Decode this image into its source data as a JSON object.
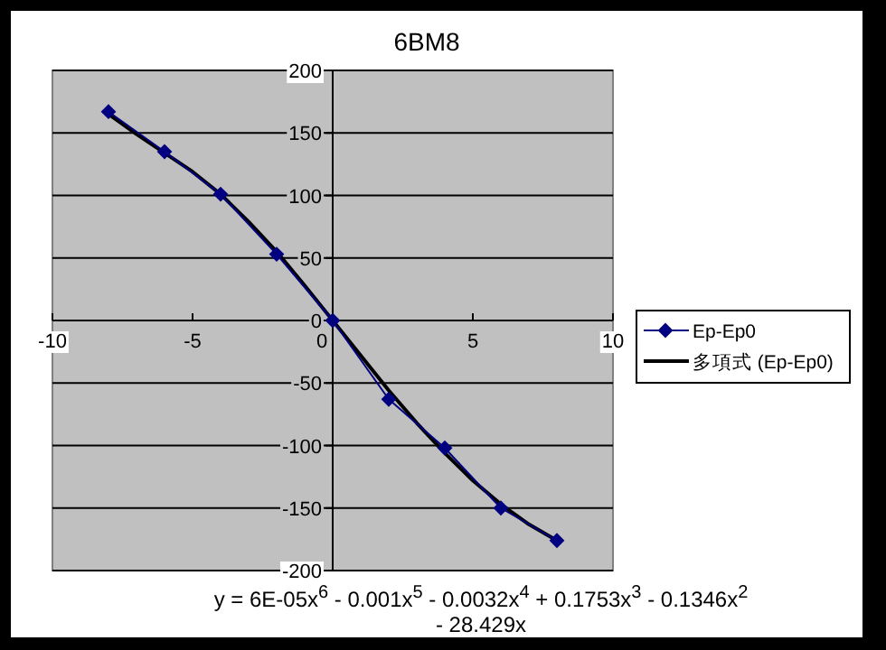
{
  "chart_data": {
    "type": "line",
    "title": "6BM8",
    "x": [
      -8,
      -6,
      -4,
      -2,
      0,
      2,
      4,
      6,
      8
    ],
    "series": [
      {
        "name": "Ep-Ep0",
        "color": "#000080",
        "marker": "diamond",
        "values": [
          167,
          135,
          101,
          53,
          0,
          -63,
          -102,
          -150,
          -176
        ]
      },
      {
        "name": "多項式 (Ep-Ep0)",
        "color": "#000000",
        "marker": "none",
        "x": [
          -8,
          -7,
          -6,
          -5,
          -4,
          -3,
          -2,
          -1,
          0,
          1,
          2,
          3,
          4,
          5,
          6,
          7,
          8
        ],
        "values": [
          165,
          149,
          134,
          119,
          101,
          79,
          55,
          28,
          0,
          -28,
          -56,
          -82,
          -106,
          -128,
          -147,
          -163,
          -176
        ]
      }
    ],
    "xlim": [
      -10,
      10
    ],
    "xticks": [
      -10,
      -5,
      0,
      5,
      10
    ],
    "ylim": [
      -200,
      200
    ],
    "yticks": [
      -200,
      -150,
      -100,
      -50,
      0,
      50,
      100,
      150,
      200
    ],
    "grid": "y",
    "legend": "right",
    "line_style": "solid",
    "annotations": [
      "y = 6E-05x$^{6}$ - 0.001x$^{5}$ - 0.0032x$^{4}$ + 0.1753x$^{3}$ - 0.1346x$^{2}$ - 28.429x"
    ]
  }
}
